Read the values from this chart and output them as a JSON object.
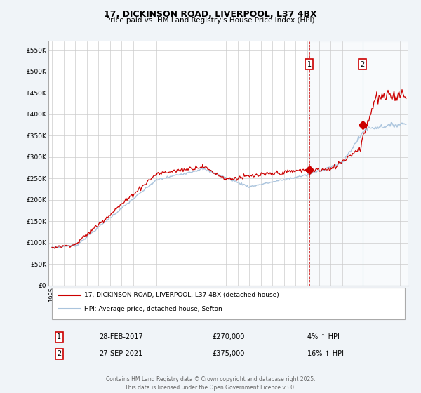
{
  "title": "17, DICKINSON ROAD, LIVERPOOL, L37 4BX",
  "subtitle": "Price paid vs. HM Land Registry's House Price Index (HPI)",
  "title_fontsize": 9,
  "subtitle_fontsize": 7.5,
  "ylabel_ticks": [
    "£0",
    "£50K",
    "£100K",
    "£150K",
    "£200K",
    "£250K",
    "£300K",
    "£350K",
    "£400K",
    "£450K",
    "£500K",
    "£550K"
  ],
  "ytick_values": [
    0,
    50000,
    100000,
    150000,
    200000,
    250000,
    300000,
    350000,
    400000,
    450000,
    500000,
    550000
  ],
  "ylim": [
    0,
    570000
  ],
  "xlim_start": 1994.7,
  "xlim_end": 2025.7,
  "hpi_color": "#aac4dd",
  "price_color": "#cc0000",
  "bg_color": "#f0f4f8",
  "plot_bg_color": "#ffffff",
  "grid_color": "#cccccc",
  "legend_label_price": "17, DICKINSON ROAD, LIVERPOOL, L37 4BX (detached house)",
  "legend_label_hpi": "HPI: Average price, detached house, Sefton",
  "transaction1_date": "28-FEB-2017",
  "transaction1_price": 270000,
  "transaction1_note": "4% ↑ HPI",
  "transaction1_x": 2017.17,
  "transaction2_date": "27-SEP-2021",
  "transaction2_price": 375000,
  "transaction2_note": "16% ↑ HPI",
  "transaction2_x": 2021.75,
  "footer": "Contains HM Land Registry data © Crown copyright and database right 2025.\nThis data is licensed under the Open Government Licence v3.0.",
  "footnote_fontsize": 5.5
}
